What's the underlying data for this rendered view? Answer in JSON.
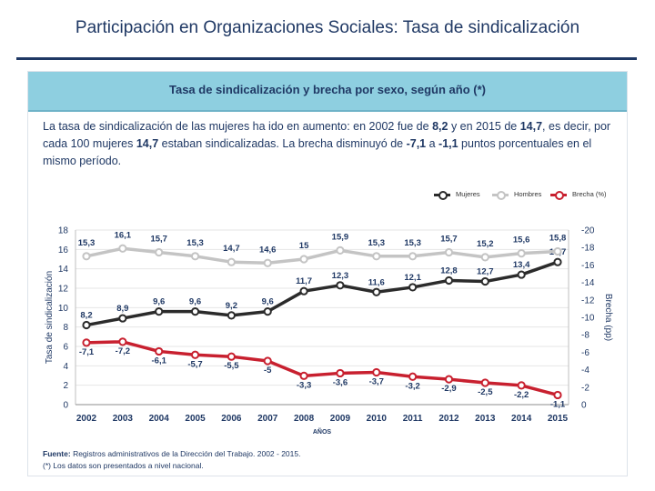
{
  "slide": {
    "title": "Participación en Organizaciones Sociales: Tasa de sindicalización"
  },
  "panel": {
    "header": "Tasa de sindicalización y brecha por sexo, según año (*)",
    "intro": {
      "t1": "La tasa de sindicalización de las mujeres ha ido en aumento: en 2002 fue de ",
      "b1": "8,2",
      "t2": " y en 2015 de ",
      "b2": "14,7",
      "t3": ", es decir, por cada 100 mujeres ",
      "b3": "14,7",
      "t4": " estaban sindicalizadas. La brecha disminuyó de ",
      "b4": "-7,1",
      "t5": " a ",
      "b5": "-1,1",
      "t6": " puntos porcentuales en el mismo período."
    },
    "footer": {
      "source_label": "Fuente:",
      "source_text": " Registros administrativos de la Dirección del Trabajo. 2002 - 2015.",
      "note": "(*) Los datos son presentados a nivel nacional."
    }
  },
  "colors": {
    "mujeres": "#2b2b2b",
    "hombres": "#c4c4c4",
    "brecha": "#c8202f",
    "tick_text": "#1f3864"
  },
  "chart_data": {
    "type": "line",
    "title": "Tasa de sindicalización y brecha por sexo, según año (*)",
    "xlabel": "AÑOS",
    "ylabel": "Tasa de sindicalización",
    "y2label": "Brecha (pp)",
    "ylim": [
      0,
      18
    ],
    "yticks": [
      "0",
      "2",
      "4",
      "6",
      "8",
      "10",
      "12",
      "14",
      "16",
      "18"
    ],
    "y2lim": [
      0,
      -20
    ],
    "y2ticks": [
      "0",
      "-2",
      "-4",
      "-6",
      "-8",
      "-10",
      "-12",
      "-14",
      "-16",
      "-18",
      "-20"
    ],
    "grid": true,
    "legend_position": "top-right",
    "categories": [
      "2002",
      "2003",
      "2004",
      "2005",
      "2006",
      "2007",
      "2008",
      "2009",
      "2010",
      "2011",
      "2012",
      "2013",
      "2014",
      "2015"
    ],
    "series": [
      {
        "name": "Mujeres",
        "axis": "left",
        "color": "#2b2b2b",
        "values": [
          8.2,
          8.9,
          9.6,
          9.6,
          9.2,
          9.6,
          11.7,
          12.3,
          11.6,
          12.1,
          12.8,
          12.7,
          13.4,
          14.7
        ],
        "labels": [
          "8,2",
          "8,9",
          "9,6",
          "9,6",
          "9,2",
          "9,6",
          "11,7",
          "12,3",
          "11,6",
          "12,1",
          "12,8",
          "12,7",
          "13,4",
          "14,7"
        ]
      },
      {
        "name": "Hombres",
        "axis": "left",
        "color": "#c4c4c4",
        "values": [
          15.3,
          16.1,
          15.7,
          15.3,
          14.7,
          14.6,
          15.0,
          15.9,
          15.3,
          15.3,
          15.7,
          15.2,
          15.6,
          15.8
        ],
        "labels": [
          "15,3",
          "16,1",
          "15,7",
          "15,3",
          "14,7",
          "14,6",
          "15",
          "15,9",
          "15,3",
          "15,3",
          "15,7",
          "15,2",
          "15,6",
          "15,8"
        ]
      },
      {
        "name": "Brecha (%)",
        "axis": "right",
        "color": "#c8202f",
        "values": [
          -7.1,
          -7.2,
          -6.1,
          -5.7,
          -5.5,
          -5.0,
          -3.3,
          -3.6,
          -3.7,
          -3.2,
          -2.9,
          -2.5,
          -2.2,
          -1.1
        ],
        "labels": [
          "-7,1",
          "-7,2",
          "-6,1",
          "-5,7",
          "-5,5",
          "-5",
          "-3,3",
          "-3,6",
          "-3,7",
          "-3,2",
          "-2,9",
          "-2,5",
          "-2,2",
          "-1,1"
        ]
      }
    ]
  }
}
